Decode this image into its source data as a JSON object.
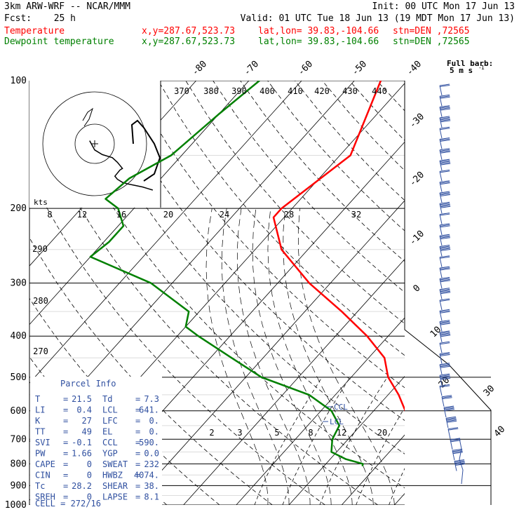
{
  "header": {
    "model": "3km ARW-WRF -- NCAR/MMM",
    "init": "Init: 00 UTC Mon 17 Jun 13",
    "fcst_label": "Fcst:",
    "fcst_value": "25 h",
    "valid": "Valid: 01 UTC Tue 18 Jun 13 (19 MDT Mon 17 Jun 13)"
  },
  "legend": [
    {
      "label": "Temperature",
      "coords": "x,y=287.67,523.73",
      "latlon": "lat,lon= 39.83,-104.66",
      "stn": "stn=DEN ,72565",
      "color": "#ff0000"
    },
    {
      "label": "Dewpoint temperature",
      "coords": "x,y=287.67,523.73",
      "latlon": "lat,lon= 39.83,-104.66",
      "stn": "stn=DEN ,72565",
      "color": "#008000"
    }
  ],
  "barb_legend": {
    "line1": "Full barb:",
    "line2": "5 m s",
    "sup": "-1"
  },
  "hodograph": {
    "kts_label": "kts",
    "ring_labels": [
      "8",
      "12",
      "16",
      "20"
    ]
  },
  "ccl_label": "CCL",
  "lcl_label": "LCL",
  "parcel_info": {
    "title": "Parcel Info",
    "rows": [
      {
        "l1": "T",
        "v1": "21.5",
        "l2": "Td",
        "v2": "7.3"
      },
      {
        "l1": "LI",
        "v1": "0.4",
        "l2": "LCL",
        "v2": "641."
      },
      {
        "l1": "K",
        "v1": "27",
        "l2": "LFC",
        "v2": "0."
      },
      {
        "l1": "TT",
        "v1": "49",
        "l2": "EL",
        "v2": "0."
      },
      {
        "l1": "SVI",
        "v1": "-0.1",
        "l2": "CCL",
        "v2": "590."
      },
      {
        "l1": "PW",
        "v1": "1.66",
        "l2": "YGP",
        "v2": "0.0"
      },
      {
        "l1": "CAPE",
        "v1": "0",
        "l2": "SWEAT",
        "v2": "232"
      },
      {
        "l1": "CIN",
        "v1": "0",
        "l2": "HWBZ",
        "v2": "4074."
      },
      {
        "l1": "Tc",
        "v1": "28.2",
        "l2": "SHEAR",
        "v2": "38."
      },
      {
        "l1": "SREH",
        "v1": "0",
        "l2": "LAPSE",
        "v2": "8.1"
      }
    ],
    "cell": "CELL = 272/16"
  },
  "chart_data": {
    "type": "line",
    "pressure_levels": [
      100,
      200,
      300,
      400,
      500,
      600,
      700,
      800,
      900,
      1000
    ],
    "isotherm_labels": [
      -80,
      -70,
      -60,
      -50,
      -40,
      -30,
      -20,
      -10,
      0,
      10,
      20,
      30,
      40
    ],
    "theta_labels": [
      270,
      280,
      290,
      370,
      380,
      390,
      400,
      410,
      420,
      430,
      440
    ],
    "theta_e_labels": [
      8,
      12,
      16,
      20,
      24,
      28,
      32
    ],
    "mixing_ratio_labels": [
      2,
      3,
      5,
      8,
      12,
      20
    ],
    "series": [
      {
        "name": "Temperature",
        "color": "#ff0000",
        "points": [
          [
            100,
            -55
          ],
          [
            150,
            -48
          ],
          [
            200,
            -52
          ],
          [
            210,
            -52
          ],
          [
            250,
            -45
          ],
          [
            300,
            -34
          ],
          [
            350,
            -23
          ],
          [
            400,
            -14
          ],
          [
            450,
            -7
          ],
          [
            500,
            -3
          ],
          [
            550,
            2
          ],
          [
            600,
            6
          ],
          [
            650,
            10
          ],
          [
            700,
            13
          ],
          [
            750,
            17
          ],
          [
            790,
            21
          ],
          [
            810,
            21.5
          ]
        ]
      },
      {
        "name": "Dewpoint temperature",
        "color": "#008000",
        "points": [
          [
            100,
            -78
          ],
          [
            120,
            -80
          ],
          [
            150,
            -82
          ],
          [
            170,
            -86
          ],
          [
            190,
            -87
          ],
          [
            200,
            -83
          ],
          [
            220,
            -79
          ],
          [
            240,
            -79
          ],
          [
            260,
            -80
          ],
          [
            300,
            -64
          ],
          [
            350,
            -52
          ],
          [
            380,
            -50
          ],
          [
            400,
            -46
          ],
          [
            450,
            -36
          ],
          [
            500,
            -27
          ],
          [
            550,
            -15
          ],
          [
            600,
            -8
          ],
          [
            650,
            -4
          ],
          [
            700,
            -3
          ],
          [
            750,
            -1
          ],
          [
            780,
            3
          ],
          [
            800,
            7
          ],
          [
            810,
            7.3
          ]
        ]
      }
    ],
    "hodograph_uv": [
      [
        -2,
        -2
      ],
      [
        0,
        4
      ],
      [
        3,
        7
      ],
      [
        7,
        9
      ],
      [
        9,
        12
      ],
      [
        10,
        14
      ],
      [
        11,
        16
      ],
      [
        10,
        17
      ],
      [
        9,
        19
      ],
      [
        8,
        21
      ],
      [
        9,
        23
      ],
      [
        11,
        25
      ],
      [
        13,
        26
      ],
      [
        16,
        27
      ],
      [
        19,
        28
      ],
      [
        21,
        29
      ],
      [
        23,
        30
      ]
    ]
  }
}
